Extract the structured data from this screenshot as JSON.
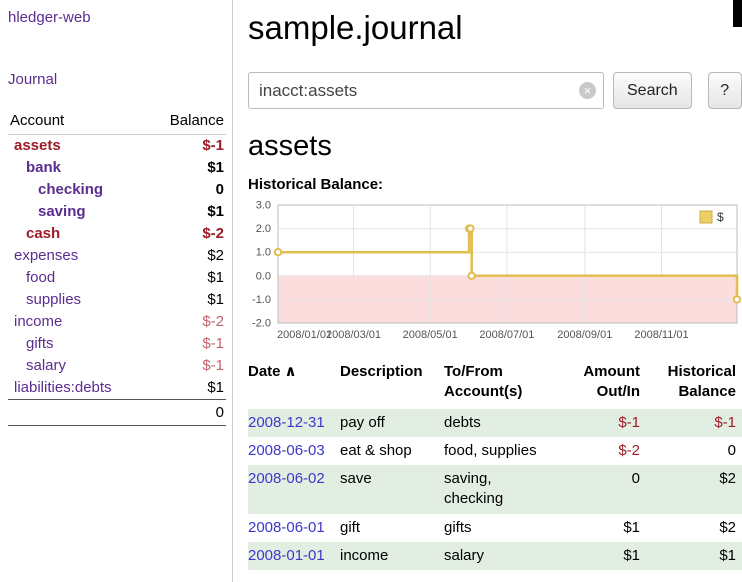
{
  "app": {
    "title": "hledger-web",
    "nav_journal": "Journal"
  },
  "sidebar": {
    "accounts": {
      "header_account": "Account",
      "header_balance": "Balance",
      "rows": [
        {
          "name": "assets",
          "balance": "$-1",
          "indent": 1,
          "in_assets": true,
          "neg": "strong"
        },
        {
          "name": "bank",
          "balance": "$1",
          "indent": 2,
          "in_assets": true
        },
        {
          "name": "checking",
          "balance": "0",
          "indent": 3,
          "in_assets": true
        },
        {
          "name": "saving",
          "balance": "$1",
          "indent": 3,
          "in_assets": true
        },
        {
          "name": "cash",
          "balance": "$-2",
          "indent": 2,
          "in_assets": true,
          "neg": "strong"
        },
        {
          "name": "expenses",
          "balance": "$2",
          "indent": 1
        },
        {
          "name": "food",
          "balance": "$1",
          "indent": 2
        },
        {
          "name": "supplies",
          "balance": "$1",
          "indent": 2
        },
        {
          "name": "income",
          "balance": "$-2",
          "indent": 1,
          "neg": "soft"
        },
        {
          "name": "gifts",
          "balance": "$-1",
          "indent": 2,
          "neg": "soft"
        },
        {
          "name": "salary",
          "balance": "$-1",
          "indent": 2,
          "neg": "soft"
        },
        {
          "name": "liabilities:debts",
          "balance": "$1",
          "indent": 1
        }
      ],
      "total": "0"
    }
  },
  "main": {
    "title": "sample.journal",
    "search": {
      "value": "inacct:assets",
      "clear": "×",
      "submit": "Search",
      "help": "?"
    },
    "account_title": "assets",
    "chart_title": "Historical Balance:"
  },
  "chart_data": {
    "type": "line",
    "title": "Historical Balance",
    "line_style": "step",
    "legend": [
      "$"
    ],
    "legend_position": "top-right",
    "grid": true,
    "x_range": [
      "2008-01-01",
      "2008-12-31"
    ],
    "y_range": [
      -2,
      3
    ],
    "x_ticks": [
      "2008/01/01",
      "2008/03/01",
      "2008/05/01",
      "2008/07/01",
      "2008/09/01",
      "2008/11/01"
    ],
    "y_ticks": [
      3.0,
      2.0,
      1.0,
      0.0,
      -1.0,
      -2.0
    ],
    "series": [
      {
        "name": "$",
        "points": [
          {
            "date": "2008-01-01",
            "value": 1
          },
          {
            "date": "2008-06-01",
            "value": 2
          },
          {
            "date": "2008-06-02",
            "value": 2
          },
          {
            "date": "2008-06-03",
            "value": 0
          },
          {
            "date": "2008-12-31",
            "value": -1
          }
        ]
      }
    ],
    "colors": {
      "line": "#e2bd4f",
      "marker_fill": "#ffffff",
      "below_zero_fill": "#fbdddd",
      "grid": "#e4e4e4",
      "border": "#bcbcbc",
      "legend_fill": "#eecf67",
      "legend_border": "#c9ae45"
    }
  },
  "register": {
    "headers": {
      "date": "Date",
      "sort_indicator": "∧",
      "description": "Description",
      "accounts": "To/From Account(s)",
      "amount": "Amount Out/In",
      "balance": "Historical Balance"
    },
    "rows": [
      {
        "date": "2008-12-31",
        "description": "pay off",
        "accounts": "debts",
        "amount": "$-1",
        "balance": "$-1",
        "amount_neg": true,
        "balance_neg": true
      },
      {
        "date": "2008-06-03",
        "description": "eat & shop",
        "accounts": "food, supplies",
        "amount": "$-2",
        "balance": "0",
        "amount_neg": true
      },
      {
        "date": "2008-06-02",
        "description": "save",
        "accounts": "saving, checking",
        "amount": "0",
        "balance": "$2"
      },
      {
        "date": "2008-06-01",
        "description": "gift",
        "accounts": "gifts",
        "amount": "$1",
        "balance": "$2"
      },
      {
        "date": "2008-01-01",
        "description": "income",
        "accounts": "salary",
        "amount": "$1",
        "balance": "$1"
      }
    ]
  },
  "colors": {
    "link_purple": "#5b2d90",
    "date_link": "#3d38c9",
    "negative_strong": "#9e1c28",
    "negative_soft": "#c2636b",
    "row_green": "#e3eee3"
  }
}
